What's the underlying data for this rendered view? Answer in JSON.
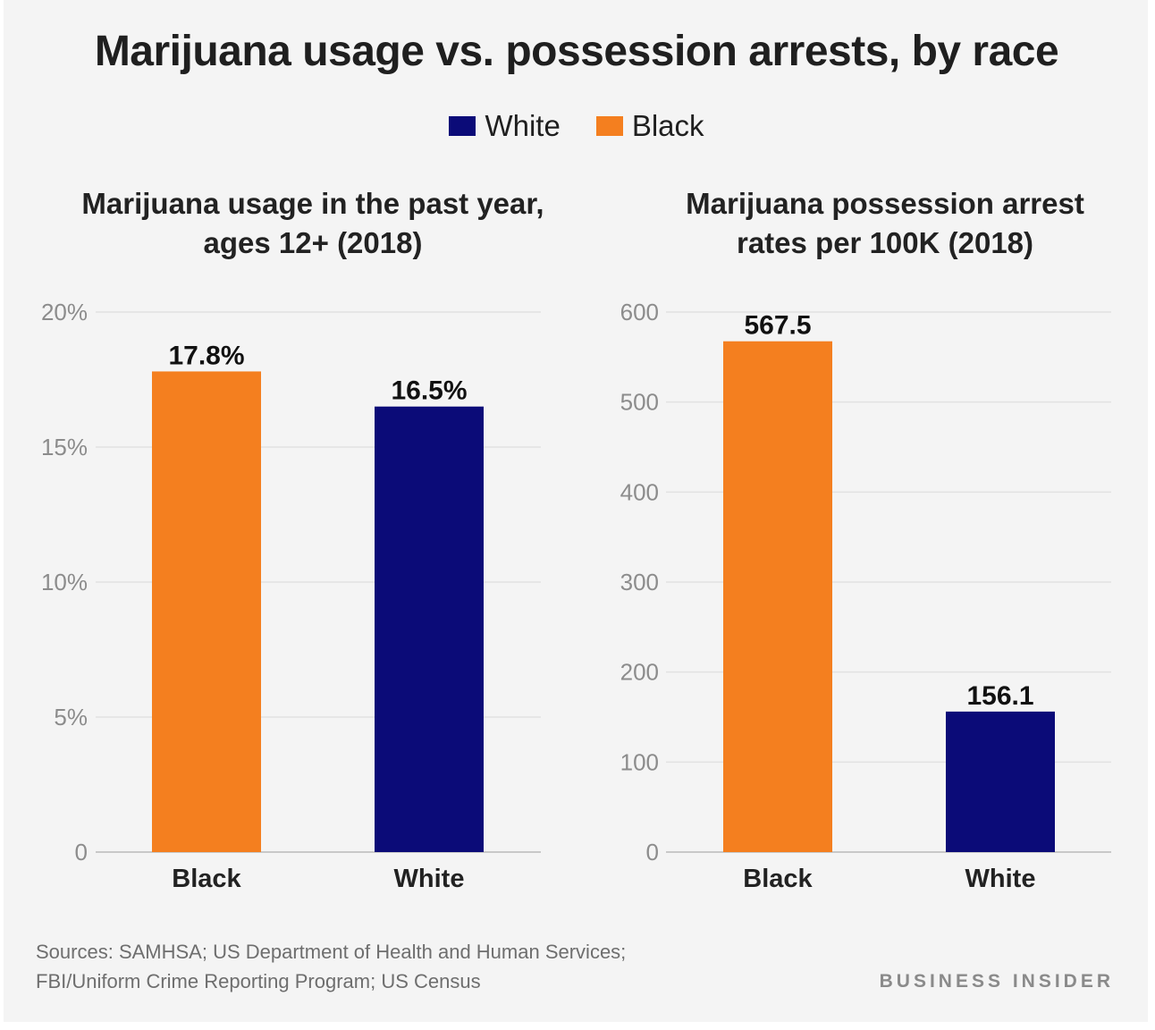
{
  "title": "Marijuana usage vs. possession arrests, by race",
  "legend": [
    {
      "label": "White",
      "color": "#0b0b78"
    },
    {
      "label": "Black",
      "color": "#f47f1f"
    }
  ],
  "chart_data": [
    {
      "type": "bar",
      "title_line1": "Marijuana usage in the past year,",
      "title_line2": "ages 12+ (2018)",
      "categories": [
        "Black",
        "White"
      ],
      "values": [
        17.8,
        16.5
      ],
      "value_labels": [
        "17.8%",
        "16.5%"
      ],
      "colors": [
        "#f47f1f",
        "#0b0b78"
      ],
      "ylim": [
        0,
        20
      ],
      "yticks": [
        0,
        5,
        10,
        15,
        20
      ],
      "ytick_labels": [
        "0",
        "5%",
        "10%",
        "15%",
        "20%"
      ],
      "grid": true
    },
    {
      "type": "bar",
      "title_line1": "Marijuana possession arrest",
      "title_line2": "rates per 100K (2018)",
      "categories": [
        "Black",
        "White"
      ],
      "values": [
        567.5,
        156.1
      ],
      "value_labels": [
        "567.5",
        "156.1"
      ],
      "colors": [
        "#f47f1f",
        "#0b0b78"
      ],
      "ylim": [
        0,
        600
      ],
      "yticks": [
        0,
        100,
        200,
        300,
        400,
        500,
        600
      ],
      "ytick_labels": [
        "0",
        "100",
        "200",
        "300",
        "400",
        "500",
        "600"
      ],
      "grid": true
    }
  ],
  "source": {
    "label": "Sources:",
    "line1": " SAMHSA; US Department of Health and Human Services;",
    "line2": "FBI/Uniform Crime Reporting Program; US Census"
  },
  "brand": "BUSINESS INSIDER"
}
